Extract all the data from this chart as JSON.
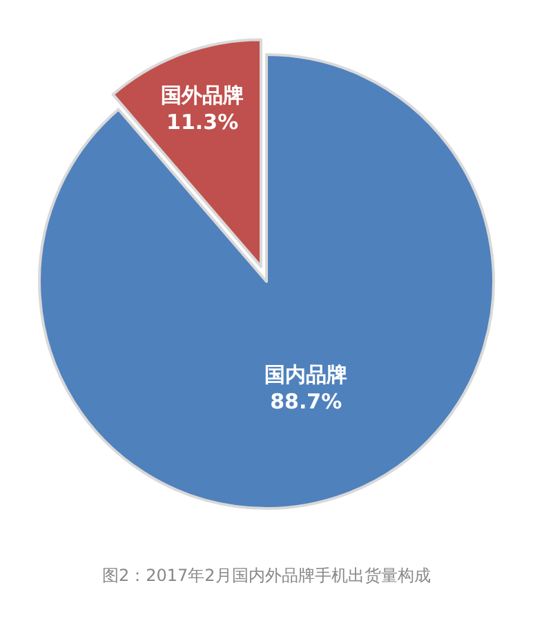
{
  "chart_data": {
    "type": "pie",
    "categories": [
      "国内品牌",
      "国外品牌"
    ],
    "values": [
      88.7,
      11.3
    ],
    "value_labels": [
      "88.7%",
      "11.3%"
    ],
    "colors": [
      "#4f81bd",
      "#c0504d"
    ],
    "legend": false,
    "annotations": [
      "图2：2017年2月国内外品牌手机出货量构成"
    ]
  }
}
